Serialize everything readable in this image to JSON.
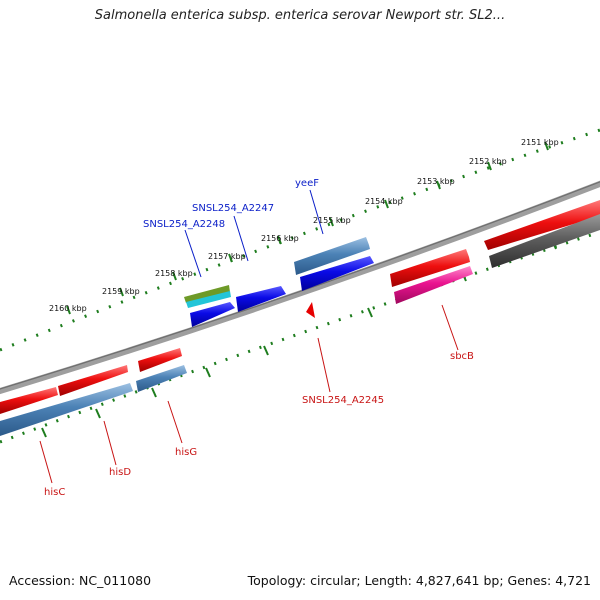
{
  "title": "Salmonella enterica subsp. enterica serovar Newport str. SL2...",
  "footer": {
    "accession": "Accession: NC_011080",
    "stats": "Topology: circular; Length: 4,827,641 bp; Genes: 4,721"
  },
  "kbp_ticks": [
    "2151 kbp",
    "2152 kbp",
    "2153 kbp",
    "2154 kbp",
    "2155 kbp",
    "2156 kbp",
    "2157 kbp",
    "2158 kbp",
    "2159 kbp",
    "2160 kbp"
  ],
  "gene_labels": {
    "yeeF": "yeeF",
    "SNSL254_A2247": "SNSL254_A2247",
    "SNSL254_A2248": "SNSL254_A2248",
    "SNSL254_A2245": "SNSL254_A2245",
    "sbcB": "sbcB",
    "hisG": "hisG",
    "hisD": "hisD",
    "hisC": "hisC"
  },
  "colors": {
    "backbone": "#808080",
    "tick_green": "#1e7d1e",
    "red": "#e60000",
    "steelblue": "#4f86b8",
    "blue": "#0a0adc",
    "pink": "#e8128c",
    "darkgray": "#555555",
    "olive": "#6e9a28",
    "cyan": "#22c5d8"
  }
}
